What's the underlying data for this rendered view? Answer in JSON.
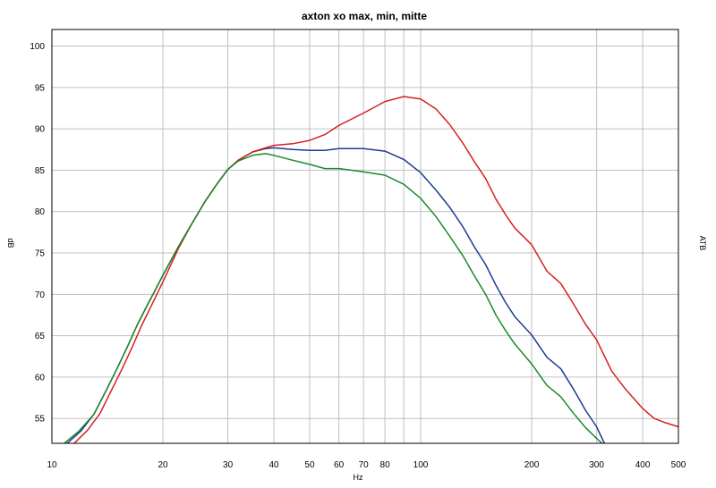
{
  "chart_data": {
    "type": "line",
    "title": "axton xo max, min, mitte",
    "xlabel": "Hz",
    "ylabel": "dB",
    "ylabel_right": "ATB",
    "x_scale": "log",
    "xlim": [
      10,
      500
    ],
    "ylim": [
      52,
      102
    ],
    "grid": true,
    "x_ticks": [
      10,
      20,
      30,
      40,
      50,
      60,
      70,
      80,
      100,
      200,
      300,
      400,
      500
    ],
    "x_tick_labels": [
      "10",
      "20",
      "30",
      "40",
      "50",
      "60",
      "70",
      "80",
      "100",
      "200",
      "300",
      "400",
      "500"
    ],
    "y_ticks": [
      55,
      60,
      65,
      70,
      75,
      80,
      85,
      90,
      95,
      100
    ],
    "y_tick_labels": [
      "55",
      "60",
      "65",
      "70",
      "75",
      "80",
      "85",
      "90",
      "95",
      "100"
    ],
    "x_grid": [
      10,
      20,
      30,
      40,
      50,
      60,
      70,
      80,
      90,
      100,
      200,
      300,
      400,
      500
    ],
    "series": [
      {
        "color": "#1f3a93",
        "points": [
          [
            11,
            52
          ],
          [
            12,
            53.5
          ],
          [
            13,
            55.5
          ],
          [
            14,
            58.3
          ],
          [
            15,
            61
          ],
          [
            16,
            63.6
          ],
          [
            17,
            66.2
          ],
          [
            18,
            68.4
          ],
          [
            19,
            70.4
          ],
          [
            20,
            72.3
          ],
          [
            22,
            75.7
          ],
          [
            24,
            78.6
          ],
          [
            26,
            81.2
          ],
          [
            28,
            83.3
          ],
          [
            30,
            85.1
          ],
          [
            32,
            86.2
          ],
          [
            35,
            87.2
          ],
          [
            38,
            87.6
          ],
          [
            40,
            87.7
          ],
          [
            45,
            87.5
          ],
          [
            50,
            87.4
          ],
          [
            55,
            87.4
          ],
          [
            60,
            87.6
          ],
          [
            70,
            87.6
          ],
          [
            80,
            87.3
          ],
          [
            90,
            86.3
          ],
          [
            100,
            84.7
          ],
          [
            110,
            82.6
          ],
          [
            120,
            80.5
          ],
          [
            130,
            78.2
          ],
          [
            140,
            75.7
          ],
          [
            150,
            73.6
          ],
          [
            160,
            71.1
          ],
          [
            170,
            69
          ],
          [
            180,
            67.3
          ],
          [
            200,
            65.1
          ],
          [
            220,
            62.4
          ],
          [
            240,
            61
          ],
          [
            260,
            58.5
          ],
          [
            280,
            56
          ],
          [
            300,
            54
          ],
          [
            315,
            52
          ]
        ]
      },
      {
        "color": "#d62020",
        "points": [
          [
            11.5,
            52
          ],
          [
            12.5,
            53.6
          ],
          [
            13.5,
            55.6
          ],
          [
            14.5,
            58.4
          ],
          [
            15.5,
            61
          ],
          [
            16.5,
            63.6
          ],
          [
            17.5,
            66.2
          ],
          [
            18.5,
            68.4
          ],
          [
            20,
            71.5
          ],
          [
            22,
            75.5
          ],
          [
            24,
            78.6
          ],
          [
            26,
            81.2
          ],
          [
            28,
            83.3
          ],
          [
            30,
            85.1
          ],
          [
            32,
            86.2
          ],
          [
            35,
            87.2
          ],
          [
            38,
            87.7
          ],
          [
            40,
            88
          ],
          [
            45,
            88.2
          ],
          [
            50,
            88.6
          ],
          [
            55,
            89.3
          ],
          [
            60,
            90.4
          ],
          [
            70,
            91.9
          ],
          [
            80,
            93.3
          ],
          [
            90,
            93.9
          ],
          [
            100,
            93.6
          ],
          [
            110,
            92.4
          ],
          [
            120,
            90.5
          ],
          [
            130,
            88.3
          ],
          [
            140,
            86
          ],
          [
            150,
            84
          ],
          [
            160,
            81.5
          ],
          [
            170,
            79.6
          ],
          [
            180,
            78
          ],
          [
            200,
            76
          ],
          [
            220,
            72.8
          ],
          [
            240,
            71.3
          ],
          [
            260,
            68.8
          ],
          [
            280,
            66.4
          ],
          [
            300,
            64.5
          ],
          [
            330,
            60.7
          ],
          [
            360,
            58.5
          ],
          [
            400,
            56.2
          ],
          [
            430,
            55
          ],
          [
            460,
            54.5
          ],
          [
            500,
            54
          ]
        ]
      },
      {
        "color": "#1a8a2a",
        "points": [
          [
            10.8,
            52
          ],
          [
            11.8,
            53.4
          ],
          [
            13,
            55.5
          ],
          [
            14,
            58.3
          ],
          [
            15,
            61
          ],
          [
            16,
            63.6
          ],
          [
            17,
            66.2
          ],
          [
            18,
            68.4
          ],
          [
            19,
            70.4
          ],
          [
            20,
            72.3
          ],
          [
            22,
            75.7
          ],
          [
            24,
            78.6
          ],
          [
            26,
            81.2
          ],
          [
            28,
            83.3
          ],
          [
            30,
            85.1
          ],
          [
            32,
            86.1
          ],
          [
            35,
            86.8
          ],
          [
            38,
            87
          ],
          [
            40,
            86.8
          ],
          [
            45,
            86.2
          ],
          [
            50,
            85.7
          ],
          [
            55,
            85.2
          ],
          [
            60,
            85.2
          ],
          [
            70,
            84.8
          ],
          [
            80,
            84.4
          ],
          [
            90,
            83.3
          ],
          [
            100,
            81.6
          ],
          [
            110,
            79.4
          ],
          [
            120,
            77
          ],
          [
            130,
            74.7
          ],
          [
            140,
            72.2
          ],
          [
            150,
            70
          ],
          [
            160,
            67.5
          ],
          [
            170,
            65.6
          ],
          [
            180,
            64
          ],
          [
            200,
            61.6
          ],
          [
            220,
            59
          ],
          [
            240,
            57.6
          ],
          [
            260,
            55.6
          ],
          [
            280,
            53.9
          ],
          [
            300,
            52.6
          ],
          [
            310,
            52
          ]
        ]
      }
    ]
  }
}
